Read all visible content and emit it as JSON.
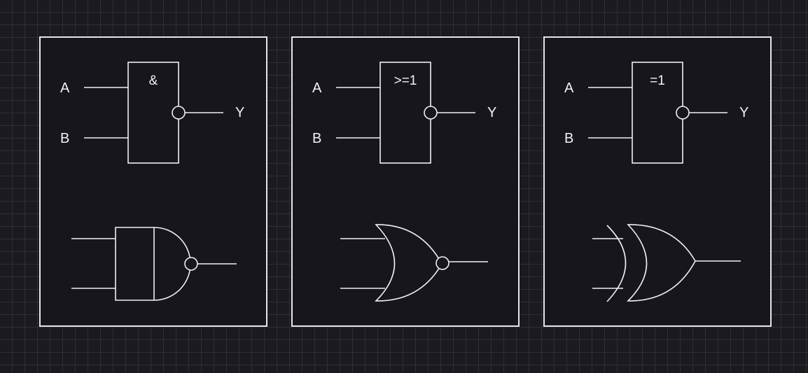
{
  "panels": [
    {
      "id": "nand",
      "symbol": "&",
      "input_a": "A",
      "input_b": "B",
      "output": "Y"
    },
    {
      "id": "nor",
      "symbol": ">=1",
      "input_a": "A",
      "input_b": "B",
      "output": "Y"
    },
    {
      "id": "xnor",
      "symbol": "=1",
      "input_a": "A",
      "input_b": "B",
      "output": "Y"
    }
  ],
  "colors": {
    "background": "#1b1a20",
    "grid": "#2f2e35",
    "panel_fill": "#18161d",
    "stroke": "#f0f0f0"
  }
}
